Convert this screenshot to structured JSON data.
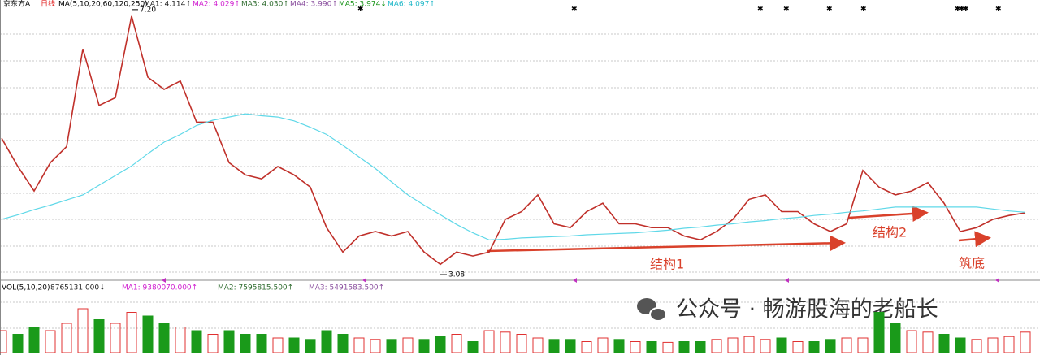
{
  "header": {
    "symbol": "京东方A",
    "period": "日线",
    "indicator": "MA(5,10,20,60,120,250)",
    "legend": [
      {
        "label": "MA1: 4.114↑",
        "color": "#222222"
      },
      {
        "label": "MA2: 4.029↑",
        "color": "#d020d0"
      },
      {
        "label": "MA3: 4.030↑",
        "color": "#2e6b2e"
      },
      {
        "label": "MA4: 3.990↑",
        "color": "#8a4f9e"
      },
      {
        "label": "MA5: 3.974↓",
        "color": "#109010"
      },
      {
        "label": "MA6: 4.097↑",
        "color": "#20b8c8"
      }
    ]
  },
  "chart_data": [
    {
      "type": "line",
      "categories": [
        null,
        null,
        null,
        null,
        null,
        null,
        null,
        null,
        null,
        null,
        null,
        null,
        null,
        null,
        null,
        null,
        null,
        null,
        null,
        null,
        null,
        null,
        null,
        null,
        null,
        null,
        null,
        null,
        null,
        null,
        null,
        null,
        null,
        null,
        null,
        null,
        null,
        null,
        null,
        null,
        null,
        null,
        null,
        null,
        null,
        null,
        null,
        null,
        null,
        null,
        null,
        null,
        null,
        null,
        null,
        null,
        null,
        null,
        null,
        null,
        null,
        null,
        null,
        null
      ],
      "series": [
        {
          "color": "#c0302a",
          "values": [
            5.2,
            4.76,
            4.38,
            4.82,
            5.07,
            6.59,
            5.71,
            5.83,
            7.1,
            6.15,
            5.96,
            6.09,
            5.45,
            5.45,
            4.82,
            4.63,
            4.57,
            4.76,
            4.63,
            4.44,
            3.81,
            3.43,
            3.68,
            3.75,
            3.68,
            3.75,
            3.43,
            3.24,
            3.43,
            3.37,
            3.43,
            3.94,
            4.06,
            4.32,
            3.87,
            3.81,
            4.06,
            4.19,
            3.87,
            3.87,
            3.81,
            3.81,
            3.68,
            3.62,
            3.75,
            3.94,
            4.25,
            4.32,
            4.06,
            4.06,
            3.87,
            3.75,
            3.87,
            4.7,
            4.44,
            4.32,
            4.38,
            4.51,
            4.19,
            3.75,
            3.81,
            3.94,
            4.0,
            4.04
          ]
        },
        {
          "color": "#5fd8e8",
          "values": [
            3.94,
            4.01,
            4.09,
            4.16,
            4.24,
            4.32,
            4.47,
            4.62,
            4.77,
            4.96,
            5.14,
            5.26,
            5.4,
            5.48,
            5.53,
            5.58,
            5.55,
            5.53,
            5.47,
            5.37,
            5.26,
            5.09,
            4.91,
            4.73,
            4.52,
            4.32,
            4.16,
            4.01,
            3.86,
            3.73,
            3.62,
            3.63,
            3.65,
            3.66,
            3.67,
            3.68,
            3.7,
            3.71,
            3.72,
            3.73,
            3.75,
            3.77,
            3.8,
            3.82,
            3.85,
            3.87,
            3.9,
            3.92,
            3.95,
            3.97,
            4.0,
            4.02,
            4.05,
            4.07,
            4.1,
            4.13,
            4.13,
            4.13,
            4.13,
            4.13,
            4.13,
            4.1,
            4.07,
            4.05
          ]
        }
      ],
      "ylim": [
        3.03,
        7.35
      ],
      "extremes": [
        {
          "value": 7.2,
          "label": "7.20"
        },
        {
          "value": 3.08,
          "label": "3.08"
        }
      ],
      "annotations": [
        "结构1",
        "结构2",
        "筑底"
      ]
    },
    {
      "type": "bar",
      "title": "VOL(5,10,20)",
      "legend": [
        {
          "label": "8765131.000↓",
          "color": "#222222"
        },
        {
          "label": "MA1: 9380070.000↑",
          "color": "#d020d0"
        },
        {
          "label": "MA2: 7595815.500↑",
          "color": "#2e6b2e"
        },
        {
          "label": "MA3: 5491583.500↑",
          "color": "#8a4f9e"
        }
      ],
      "values": [
        9375000,
        7812500,
        10937500,
        9375000,
        12500000,
        18750000,
        14062500,
        12500000,
        17187500,
        15625000,
        12500000,
        10937500,
        9375000,
        7812500,
        9375000,
        7812500,
        7812500,
        6250000,
        6250000,
        5625000,
        9375000,
        7812500,
        6250000,
        5625000,
        5625000,
        6250000,
        5625000,
        6875000,
        7812500,
        4687500,
        9375000,
        8750000,
        7812500,
        6250000,
        5625000,
        5625000,
        4687500,
        6250000,
        5625000,
        4687500,
        4687500,
        4375000,
        4687500,
        4687500,
        5625000,
        6250000,
        6875000,
        5625000,
        6250000,
        4687500,
        4687500,
        5625000,
        6250000,
        6250000,
        17187500,
        12500000,
        9375000,
        8750000,
        7812500,
        6250000,
        5625000,
        6250000,
        6875000,
        8750000
      ],
      "ylim": [
        0,
        25000000
      ],
      "up_color": "#e03030",
      "down_color": "#1a9a1a"
    }
  ],
  "watermark": "公众号 · 畅游股海的老船长"
}
